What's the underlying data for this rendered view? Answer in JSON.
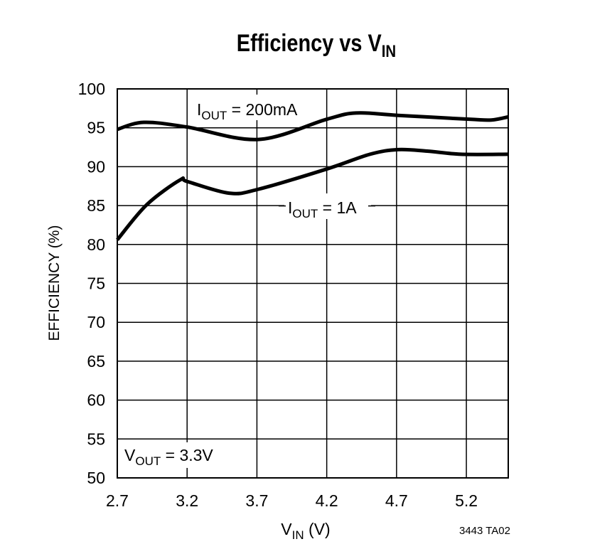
{
  "chart_data": {
    "type": "line",
    "title": "Efficiency vs V",
    "title_subscript": "IN",
    "xlabel": "V",
    "xlabel_subscript": "IN",
    "xlabel_suffix": " (V)",
    "ylabel": "EFFICIENCY (%)",
    "xlim": [
      2.7,
      5.5
    ],
    "ylim": [
      50,
      100
    ],
    "grid": true,
    "xticks": [
      "2.7",
      "3.2",
      "3.7",
      "4.2",
      "4.7",
      "5.2"
    ],
    "yticks": [
      "100",
      "95",
      "90",
      "85",
      "80",
      "75",
      "70",
      "65",
      "60",
      "55",
      "50"
    ],
    "series": [
      {
        "name": "I_OUT = 200mA",
        "label_main": "I",
        "label_sub": "OUT",
        "label_rest": " = 200mA",
        "x": [
          2.7,
          2.89,
          3.2,
          3.71,
          4.2,
          4.41,
          4.71,
          5.22,
          5.38,
          5.5
        ],
        "y": [
          94.8,
          95.7,
          95.1,
          93.5,
          96.1,
          96.9,
          96.6,
          96.1,
          96.0,
          96.4
        ]
      },
      {
        "name": "I_OUT = 1A",
        "label_main": "I",
        "label_sub": "OUT",
        "label_rest": " = 1A",
        "x": [
          2.7,
          2.91,
          3.15,
          3.2,
          3.5,
          3.71,
          4.2,
          4.51,
          4.71,
          4.92,
          5.16,
          5.5
        ],
        "y": [
          80.6,
          85.1,
          88.3,
          88.1,
          86.6,
          87.1,
          89.7,
          91.6,
          92.2,
          92.0,
          91.6,
          91.6
        ]
      }
    ],
    "annotations": [
      {
        "main": "V",
        "sub": "OUT",
        "rest": " = 3.3V"
      },
      {
        "text": "3443 TA02"
      }
    ]
  }
}
